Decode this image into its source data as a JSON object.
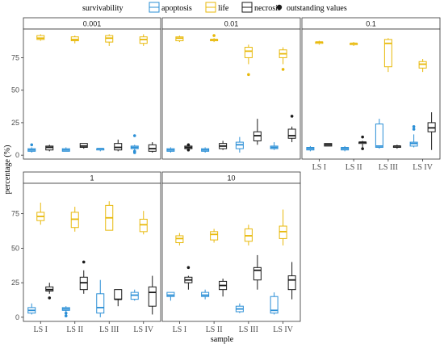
{
  "chart_data": {
    "type": "box",
    "xlabel": "sample",
    "ylabel": "percentage (%)",
    "ylim": [
      -3,
      97
    ],
    "yticks": [
      0,
      25,
      50,
      75
    ],
    "categories": [
      "LS I",
      "LS II",
      "LS III",
      "LS IV"
    ],
    "grid": false,
    "legend": {
      "position": "top",
      "title": "survivability",
      "entries": [
        {
          "name": "apoptosis",
          "color": "#2b8fd6"
        },
        {
          "name": "life",
          "color": "#e8b90a"
        },
        {
          "name": "necrosis",
          "color": "#1a1a1a"
        },
        {
          "name": "outstanding values",
          "color": "#1a1a1a",
          "marker": "dot"
        }
      ]
    },
    "panels": [
      {
        "title": "0.001",
        "groups": [
          {
            "sample": "LS I",
            "apoptosis": {
              "min": 2,
              "q1": 3,
              "median": 4,
              "q3": 5,
              "max": 6,
              "outliers": [
                8
              ]
            },
            "life": {
              "min": 88,
              "q1": 89,
              "median": 90,
              "q3": 92,
              "max": 93,
              "outliers": []
            },
            "necrosis": {
              "min": 3,
              "q1": 4,
              "median": 6,
              "q3": 7,
              "max": 8,
              "outliers": []
            }
          },
          {
            "sample": "LS II",
            "apoptosis": {
              "min": 3,
              "q1": 3,
              "median": 4,
              "q3": 5,
              "max": 6,
              "outliers": []
            },
            "life": {
              "min": 86,
              "q1": 88,
              "median": 89,
              "q3": 91,
              "max": 92,
              "outliers": []
            },
            "necrosis": {
              "min": 5,
              "q1": 6,
              "median": 7,
              "q3": 9,
              "max": 9,
              "outliers": []
            }
          },
          {
            "sample": "LS III",
            "apoptosis": {
              "min": 3,
              "q1": 4,
              "median": 5,
              "q3": 5,
              "max": 5,
              "outliers": []
            },
            "life": {
              "min": 84,
              "q1": 87,
              "median": 90,
              "q3": 92,
              "max": 93,
              "outliers": []
            },
            "necrosis": {
              "min": 3,
              "q1": 4,
              "median": 6,
              "q3": 9,
              "max": 12,
              "outliers": []
            }
          },
          {
            "sample": "LS IV",
            "apoptosis": {
              "min": 4,
              "q1": 5,
              "median": 6,
              "q3": 7,
              "max": 8,
              "outliers": [
                15,
                3,
                2
              ]
            },
            "life": {
              "min": 84,
              "q1": 86,
              "median": 89,
              "q3": 91,
              "max": 93,
              "outliers": []
            },
            "necrosis": {
              "min": 2,
              "q1": 3,
              "median": 5,
              "q3": 8,
              "max": 10,
              "outliers": []
            }
          }
        ]
      },
      {
        "title": "0.01",
        "groups": [
          {
            "sample": "LS I",
            "apoptosis": {
              "min": 2,
              "q1": 3,
              "median": 4,
              "q3": 5,
              "max": 6,
              "outliers": []
            },
            "life": {
              "min": 87,
              "q1": 88,
              "median": 90,
              "q3": 91,
              "max": 92,
              "outliers": []
            },
            "necrosis": {
              "min": 5,
              "q1": 5,
              "median": 6,
              "q3": 7,
              "max": 7,
              "outliers": [
                8,
                4
              ]
            }
          },
          {
            "sample": "LS II",
            "apoptosis": {
              "min": 2,
              "q1": 3,
              "median": 4,
              "q3": 5,
              "max": 6,
              "outliers": []
            },
            "life": {
              "min": 87,
              "q1": 88,
              "median": 89,
              "q3": 89,
              "max": 90,
              "outliers": [
                92
              ]
            },
            "necrosis": {
              "min": 4,
              "q1": 5,
              "median": 7,
              "q3": 9,
              "max": 11,
              "outliers": []
            }
          },
          {
            "sample": "LS III",
            "apoptosis": {
              "min": 2,
              "q1": 5,
              "median": 8,
              "q3": 10,
              "max": 14,
              "outliers": []
            },
            "life": {
              "min": 70,
              "q1": 75,
              "median": 80,
              "q3": 83,
              "max": 85,
              "outliers": [
                62
              ]
            },
            "necrosis": {
              "min": 8,
              "q1": 11,
              "median": 15,
              "q3": 18,
              "max": 28,
              "outliers": []
            }
          },
          {
            "sample": "LS IV",
            "apoptosis": {
              "min": 4,
              "q1": 5,
              "median": 6,
              "q3": 7,
              "max": 10,
              "outliers": []
            },
            "life": {
              "min": 70,
              "q1": 75,
              "median": 78,
              "q3": 81,
              "max": 83,
              "outliers": [
                66
              ]
            },
            "necrosis": {
              "min": 10,
              "q1": 13,
              "median": 15,
              "q3": 20,
              "max": 22,
              "outliers": [
                30
              ]
            }
          }
        ]
      },
      {
        "title": "0.1",
        "groups": [
          {
            "sample": "LS I",
            "apoptosis": {
              "min": 3,
              "q1": 4,
              "median": 5,
              "q3": 6,
              "max": 7,
              "outliers": []
            },
            "life": {
              "min": 85,
              "q1": 86,
              "median": 87,
              "q3": 87,
              "max": 88,
              "outliers": []
            },
            "necrosis": {
              "min": 7,
              "q1": 7,
              "median": 8,
              "q3": 9,
              "max": 9,
              "outliers": []
            }
          },
          {
            "sample": "LS II",
            "apoptosis": {
              "min": 3,
              "q1": 4,
              "median": 5,
              "q3": 6,
              "max": 7,
              "outliers": []
            },
            "life": {
              "min": 84,
              "q1": 85,
              "median": 86,
              "q3": 86,
              "max": 87,
              "outliers": []
            },
            "necrosis": {
              "min": 5,
              "q1": 9,
              "median": 10,
              "q3": 10,
              "max": 11,
              "outliers": [
                14,
                5
              ]
            }
          },
          {
            "sample": "LS III",
            "apoptosis": {
              "min": 5,
              "q1": 6,
              "median": 7,
              "q3": 24,
              "max": 28,
              "outliers": []
            },
            "life": {
              "min": 64,
              "q1": 68,
              "median": 86,
              "q3": 89,
              "max": 90,
              "outliers": []
            },
            "necrosis": {
              "min": 5,
              "q1": 6,
              "median": 7,
              "q3": 7,
              "max": 8,
              "outliers": []
            }
          },
          {
            "sample": "LS IV",
            "apoptosis": {
              "min": 6,
              "q1": 7,
              "median": 9,
              "q3": 10,
              "max": 16,
              "outliers": [
                20,
                22
              ]
            },
            "life": {
              "min": 64,
              "q1": 67,
              "median": 70,
              "q3": 72,
              "max": 74,
              "outliers": []
            },
            "necrosis": {
              "min": 4,
              "q1": 18,
              "median": 21,
              "q3": 25,
              "max": 33,
              "outliers": []
            }
          }
        ]
      },
      {
        "title": "1",
        "groups": [
          {
            "sample": "LS I",
            "apoptosis": {
              "min": 2,
              "q1": 3,
              "median": 5,
              "q3": 7,
              "max": 10,
              "outliers": []
            },
            "life": {
              "min": 67,
              "q1": 70,
              "median": 73,
              "q3": 76,
              "max": 83,
              "outliers": []
            },
            "necrosis": {
              "min": 17,
              "q1": 19,
              "median": 20,
              "q3": 22,
              "max": 25,
              "outliers": [
                14
              ]
            }
          },
          {
            "sample": "LS II",
            "apoptosis": {
              "min": 4,
              "q1": 5,
              "median": 6,
              "q3": 7,
              "max": 8,
              "outliers": [
                3,
                1
              ]
            },
            "life": {
              "min": 62,
              "q1": 65,
              "median": 71,
              "q3": 76,
              "max": 80,
              "outliers": []
            },
            "necrosis": {
              "min": 17,
              "q1": 20,
              "median": 25,
              "q3": 29,
              "max": 34,
              "outliers": [
                40
              ]
            }
          },
          {
            "sample": "LS III",
            "apoptosis": {
              "min": 0,
              "q1": 3,
              "median": 7,
              "q3": 17,
              "max": 27,
              "outliers": []
            },
            "life": {
              "min": 63,
              "q1": 63,
              "median": 72,
              "q3": 81,
              "max": 84,
              "outliers": []
            },
            "necrosis": {
              "min": 8,
              "q1": 13,
              "median": 13,
              "q3": 20,
              "max": 20,
              "outliers": []
            }
          },
          {
            "sample": "LS IV",
            "apoptosis": {
              "min": 12,
              "q1": 13,
              "median": 16,
              "q3": 18,
              "max": 20,
              "outliers": []
            },
            "life": {
              "min": 60,
              "q1": 62,
              "median": 67,
              "q3": 71,
              "max": 77,
              "outliers": []
            },
            "necrosis": {
              "min": 2,
              "q1": 8,
              "median": 18,
              "q3": 22,
              "max": 30,
              "outliers": []
            }
          }
        ]
      },
      {
        "title": "10",
        "groups": [
          {
            "sample": "LS I",
            "apoptosis": {
              "min": 12,
              "q1": 15,
              "median": 16,
              "q3": 18,
              "max": 18,
              "outliers": []
            },
            "life": {
              "min": 52,
              "q1": 54,
              "median": 57,
              "q3": 59,
              "max": 61,
              "outliers": []
            },
            "necrosis": {
              "min": 20,
              "q1": 25,
              "median": 27,
              "q3": 29,
              "max": 30,
              "outliers": [
                36
              ]
            }
          },
          {
            "sample": "LS II",
            "apoptosis": {
              "min": 13,
              "q1": 15,
              "median": 16,
              "q3": 18,
              "max": 20,
              "outliers": []
            },
            "life": {
              "min": 54,
              "q1": 56,
              "median": 60,
              "q3": 62,
              "max": 64,
              "outliers": []
            },
            "necrosis": {
              "min": 15,
              "q1": 20,
              "median": 23,
              "q3": 26,
              "max": 28,
              "outliers": []
            }
          },
          {
            "sample": "LS III",
            "apoptosis": {
              "min": 3,
              "q1": 4,
              "median": 6,
              "q3": 8,
              "max": 10,
              "outliers": []
            },
            "life": {
              "min": 52,
              "q1": 55,
              "median": 59,
              "q3": 64,
              "max": 67,
              "outliers": []
            },
            "necrosis": {
              "min": 20,
              "q1": 27,
              "median": 34,
              "q3": 36,
              "max": 45,
              "outliers": []
            }
          },
          {
            "sample": "LS IV",
            "apoptosis": {
              "min": 2,
              "q1": 3,
              "median": 5,
              "q3": 15,
              "max": 18,
              "outliers": []
            },
            "life": {
              "min": 52,
              "q1": 57,
              "median": 62,
              "q3": 66,
              "max": 78,
              "outliers": []
            },
            "necrosis": {
              "min": 13,
              "q1": 20,
              "median": 27,
              "q3": 30,
              "max": 40,
              "outliers": []
            }
          }
        ]
      }
    ]
  }
}
